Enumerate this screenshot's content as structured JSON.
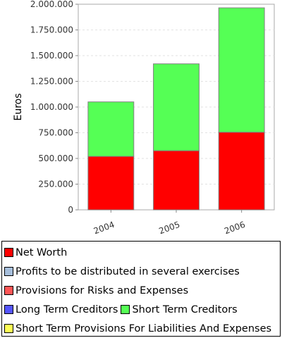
{
  "chart_data": {
    "type": "bar",
    "stacked": true,
    "categories": [
      "2004",
      "2005",
      "2006"
    ],
    "series": [
      {
        "name": "Net Worth",
        "color": "#ff0000",
        "values": [
          520000,
          575000,
          755000
        ]
      },
      {
        "name": "Profits to be distributed in several exercises",
        "color": "#a6bedb",
        "values": [
          0,
          0,
          0
        ]
      },
      {
        "name": "Provisions for Risks and Expenses",
        "color": "#ff5555",
        "values": [
          0,
          0,
          0
        ]
      },
      {
        "name": "Long Term Creditors",
        "color": "#5555ff",
        "values": [
          0,
          0,
          0
        ]
      },
      {
        "name": "Short Term Creditors",
        "color": "#55ff55",
        "values": [
          530000,
          845000,
          1210000
        ]
      },
      {
        "name": "Short Term Provisions For Liabilities And Expenses",
        "color": "#ffff55",
        "values": [
          0,
          0,
          0
        ]
      }
    ],
    "title": "",
    "xlabel": "",
    "ylabel": "Euros",
    "ylim": [
      0,
      2000000
    ],
    "yticks": [
      0,
      250000,
      500000,
      750000,
      1000000,
      1250000,
      1500000,
      1750000,
      2000000
    ],
    "ytick_labels": [
      "0",
      "250.000",
      "500.000",
      "750.000",
      "1.000.000",
      "1.250.000",
      "1.500.000",
      "1.750.000",
      "2.000.000"
    ],
    "grid": true,
    "legend_position": "bottom"
  },
  "legend_rows": [
    [
      0
    ],
    [
      1
    ],
    [
      2
    ],
    [
      3,
      4
    ],
    [
      5
    ]
  ]
}
